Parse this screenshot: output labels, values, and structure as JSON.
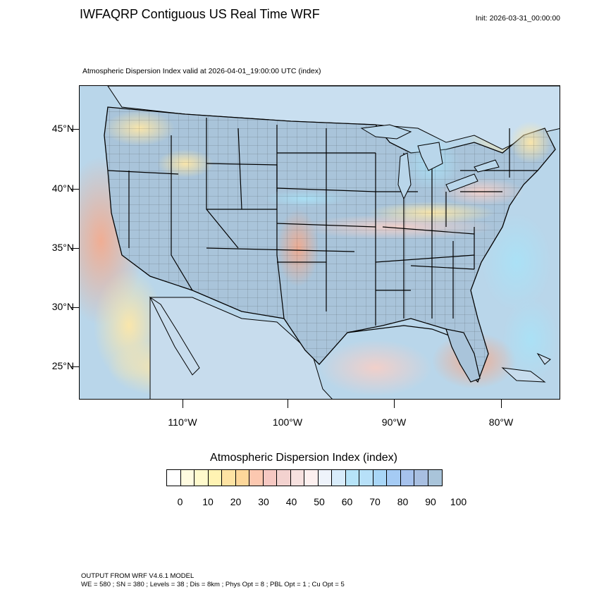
{
  "header": {
    "title": "IWFAQRP Contiguous US Real Time WRF",
    "init": "Init: 2026-03-31_00:00:00",
    "subtitle": "Atmospheric Dispersion Index valid at 2026-04-01_19:00:00 UTC   (index)"
  },
  "map": {
    "lat_labels": [
      "45°N",
      "40°N",
      "35°N",
      "30°N",
      "25°N"
    ],
    "lon_labels": [
      "110°W",
      "100°W",
      "90°W",
      "80°W"
    ],
    "colors": {
      "land_base": "#a9c4da",
      "ocean": "#b9d6ea",
      "border": "#000000"
    }
  },
  "colorbar": {
    "title": "Atmospheric Dispersion Index  (index)",
    "labels": [
      "0",
      "10",
      "20",
      "30",
      "40",
      "50",
      "60",
      "70",
      "80",
      "90",
      "100"
    ],
    "colors": [
      "#ffffff",
      "#fffbe0",
      "#fffacc",
      "#fff3b3",
      "#fee3a3",
      "#fdd79a",
      "#fcc8b0",
      "#f6c8c2",
      "#f3d2cf",
      "#f7e1df",
      "#fdf0ef",
      "#eef3fb",
      "#d8ecfb",
      "#b6e3f8",
      "#b7e0f8",
      "#a8d6f7",
      "#a5cbf4",
      "#a6c2ed",
      "#a8bfe1",
      "#a9c4da"
    ]
  },
  "footer": {
    "line1": "OUTPUT FROM WRF V4.6.1 MODEL",
    "line2": "WE = 580 ; SN = 380 ; Levels = 38 ; Dis = 8km ; Phys Opt = 8 ; PBL Opt = 1 ; Cu Opt = 5"
  }
}
